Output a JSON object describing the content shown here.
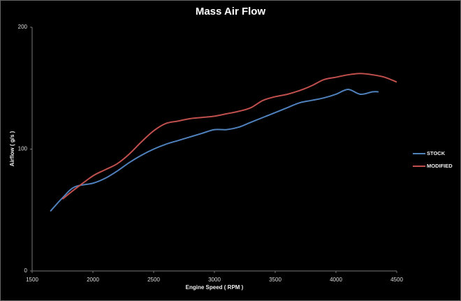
{
  "chart_data": {
    "type": "line",
    "title": "Mass Air Flow",
    "x_label": "Engine Speed ( RPM )",
    "y_label": "Airflow ( g/s )",
    "xlim": [
      1500,
      4500
    ],
    "xticks": [
      1500,
      2000,
      2500,
      3000,
      3500,
      4000,
      4500
    ],
    "ylim": [
      0,
      200
    ],
    "yticks": [
      0,
      100,
      200
    ],
    "legend": "right",
    "series": [
      {
        "name": "STOCK",
        "color": "#4f81bd",
        "x": [
          1650,
          1750,
          1850,
          2000,
          2100,
          2200,
          2300,
          2400,
          2500,
          2600,
          2700,
          2800,
          2900,
          3000,
          3100,
          3200,
          3300,
          3400,
          3500,
          3600,
          3700,
          3800,
          3900,
          4000,
          4100,
          4200,
          4300,
          4350
        ],
        "values": [
          49,
          60,
          69,
          72,
          76,
          82,
          89,
          95,
          100,
          104,
          107,
          110,
          113,
          116,
          116,
          118,
          122,
          126,
          130,
          134,
          138,
          140,
          142,
          145,
          149,
          145,
          147,
          147
        ]
      },
      {
        "name": "MODIFIED",
        "color": "#c0504d",
        "x": [
          1750,
          1850,
          2000,
          2100,
          2200,
          2300,
          2400,
          2500,
          2600,
          2700,
          2800,
          2900,
          3000,
          3100,
          3200,
          3300,
          3400,
          3500,
          3600,
          3700,
          3800,
          3900,
          4000,
          4100,
          4200,
          4300,
          4400,
          4500
        ],
        "values": [
          59,
          67,
          78,
          83,
          88,
          96,
          106,
          115,
          121,
          123,
          125,
          126,
          127,
          129,
          131,
          134,
          140,
          143,
          145,
          148,
          152,
          157,
          159,
          161,
          162,
          161,
          159,
          155
        ]
      }
    ]
  }
}
